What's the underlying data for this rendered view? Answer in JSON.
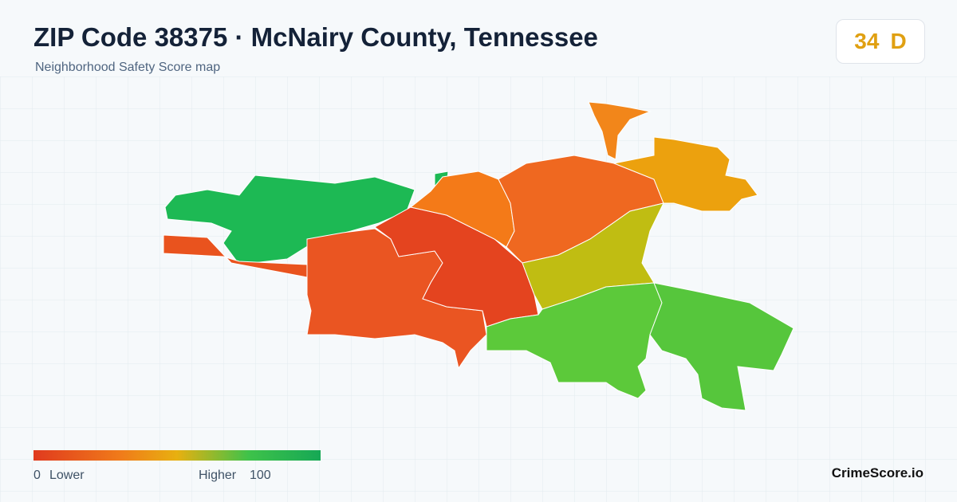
{
  "header": {
    "title": "ZIP Code 38375 · McNairy County, Tennessee",
    "subtitle": "Neighborhood Safety Score map"
  },
  "score": {
    "value": "34",
    "grade": "D"
  },
  "legend": {
    "min": 0,
    "min_label": "Lower",
    "max_label": "Higher",
    "max": 100
  },
  "brand": "CrimeScore.io"
}
